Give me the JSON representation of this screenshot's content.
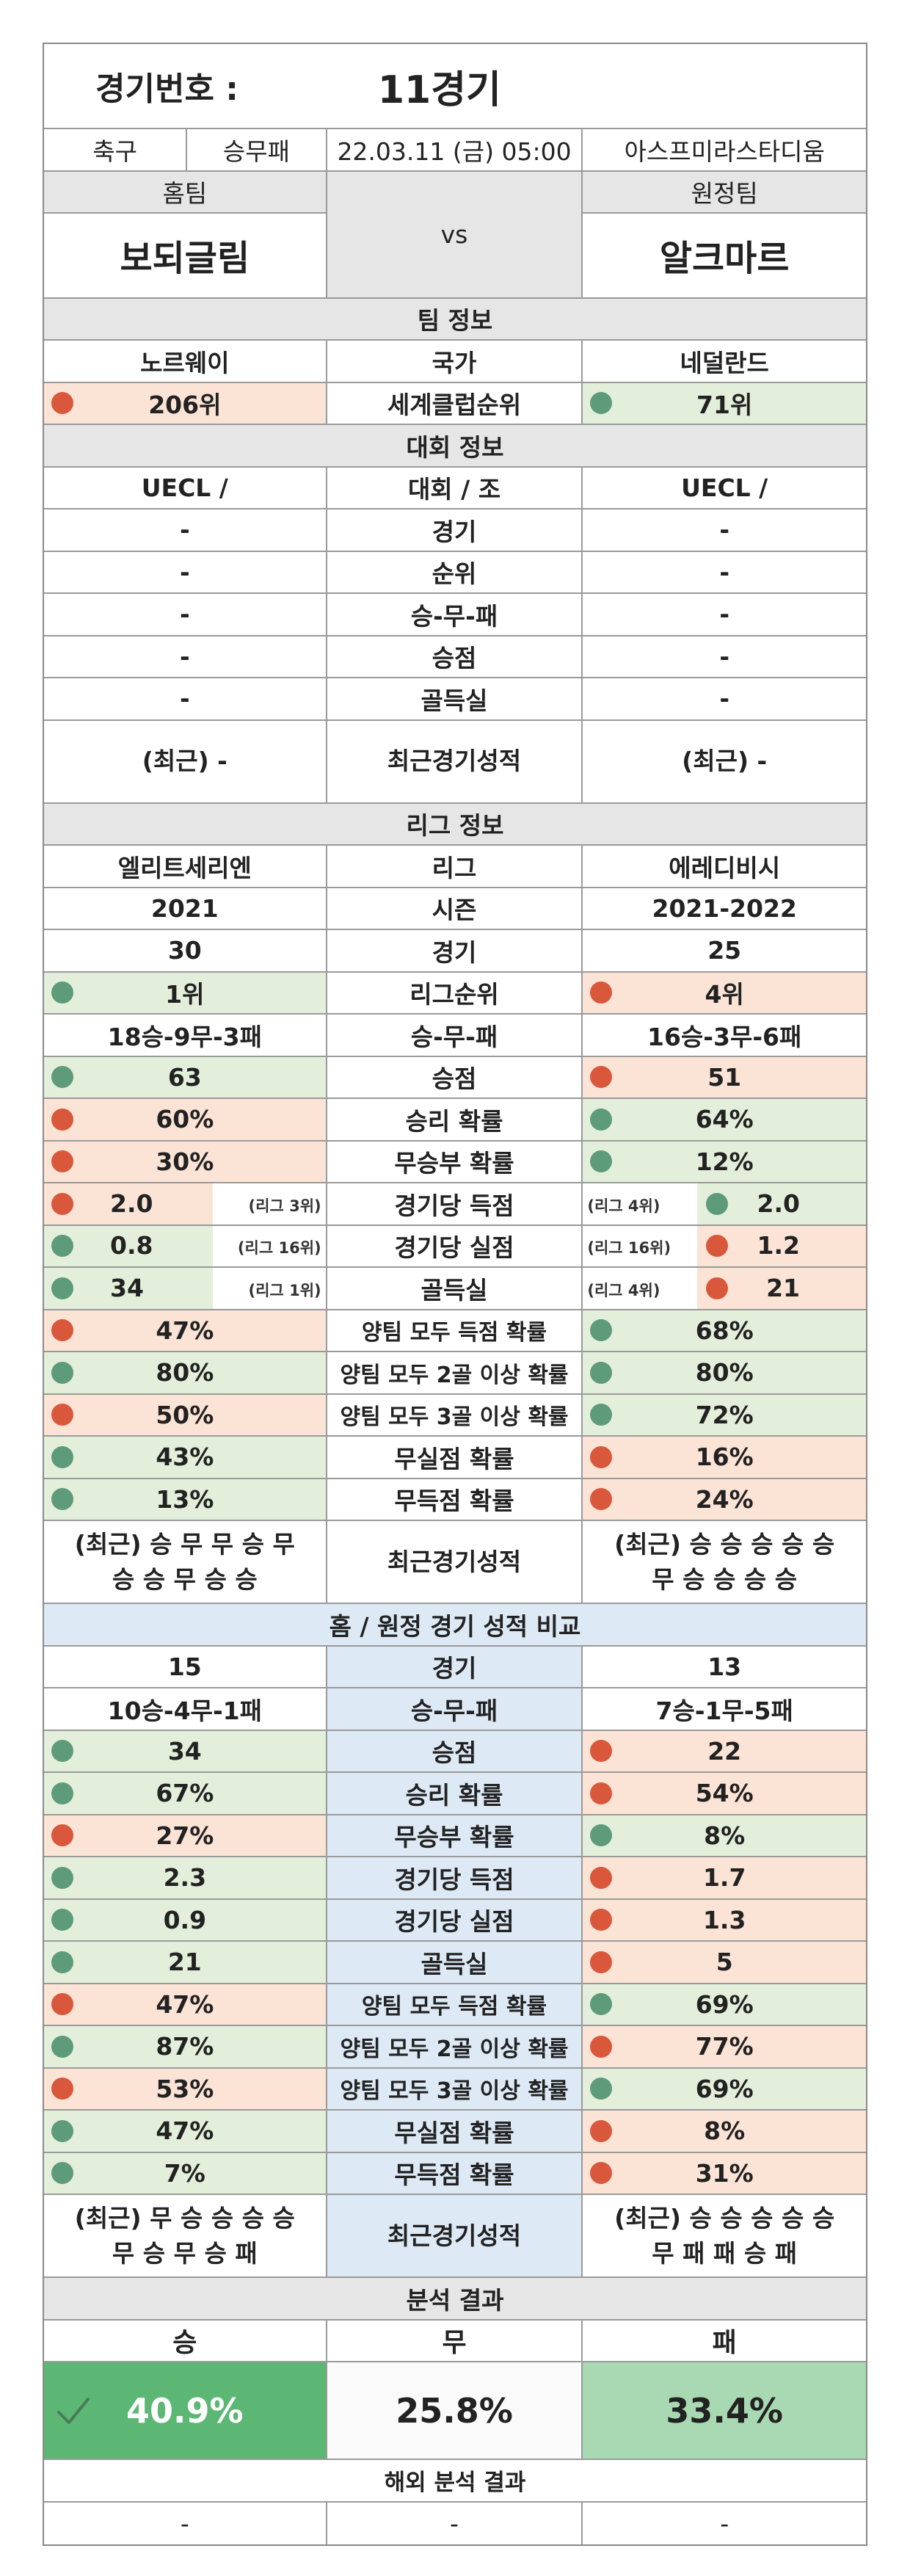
{
  "header": {
    "match_label": "경기번호 :",
    "match_no": "11경기",
    "sport": "축구",
    "bet_type": "승무패",
    "datetime": "22.03.11 (금) 05:00",
    "stadium": "아스프미라스타디움",
    "home_label": "홈팀",
    "away_label": "원정팀",
    "vs": "vs",
    "home_team": "보되글림",
    "away_team": "알크마르"
  },
  "team_info": {
    "section": "팀 정보",
    "rows": [
      {
        "label": "국가",
        "home": "노르웨이",
        "away": "네덜란드"
      },
      {
        "label": "세계클럽순위",
        "home": "206위",
        "away": "71위",
        "home_color": "red",
        "away_color": "green"
      }
    ]
  },
  "tournament_info": {
    "section": "대회 정보",
    "rows": [
      {
        "label": "대회 / 조",
        "home": "UECL /",
        "away": "UECL /"
      },
      {
        "label": "경기",
        "home": "-",
        "away": "-"
      },
      {
        "label": "순위",
        "home": "-",
        "away": "-"
      },
      {
        "label": "승-무-패",
        "home": "-",
        "away": "-"
      },
      {
        "label": "승점",
        "home": "-",
        "away": "-"
      },
      {
        "label": "골득실",
        "home": "-",
        "away": "-"
      }
    ],
    "recent": {
      "label": "최근경기성적",
      "home": "(최근) -",
      "away": "(최근) -"
    }
  },
  "league_info": {
    "section": "리그 정보",
    "rows": [
      {
        "label": "리그",
        "home": "엘리트세리엔",
        "away": "에레디비시"
      },
      {
        "label": "시즌",
        "home": "2021",
        "away": "2021-2022"
      },
      {
        "label": "경기",
        "home": "30",
        "away": "25"
      },
      {
        "label": "리그순위",
        "home": "1위",
        "away": "4위",
        "home_color": "green",
        "away_color": "red"
      },
      {
        "label": "승-무-패",
        "home": "18승-9무-3패",
        "away": "16승-3무-6패"
      },
      {
        "label": "승점",
        "home": "63",
        "away": "51",
        "home_color": "green",
        "away_color": "red"
      },
      {
        "label": "승리 확률",
        "home": "60%",
        "away": "64%",
        "home_color": "red",
        "away_color": "green"
      },
      {
        "label": "무승부 확률",
        "home": "30%",
        "away": "12%",
        "home_color": "red",
        "away_color": "green"
      },
      {
        "label": "경기당 득점",
        "home": "2.0",
        "away": "2.0",
        "home_color": "red",
        "away_color": "green",
        "home_rank": "(리그 3위)",
        "away_rank": "(리그 4위)"
      },
      {
        "label": "경기당 실점",
        "home": "0.8",
        "away": "1.2",
        "home_color": "green",
        "away_color": "red",
        "home_rank": "(리그 16위)",
        "away_rank": "(리그 16위)"
      },
      {
        "label": "골득실",
        "home": "34",
        "away": "21",
        "home_color": "green",
        "away_color": "red",
        "home_rank": "(리그 1위)",
        "away_rank": "(리그 4위)"
      },
      {
        "label": "양팀 모두 득점 확률",
        "home": "47%",
        "away": "68%",
        "home_color": "red",
        "away_color": "green"
      },
      {
        "label": "양팀 모두 2골 이상 확률",
        "home": "80%",
        "away": "80%",
        "home_color": "green",
        "away_color": "green"
      },
      {
        "label": "양팀 모두 3골 이상 확률",
        "home": "50%",
        "away": "72%",
        "home_color": "red",
        "away_color": "green"
      },
      {
        "label": "무실점 확률",
        "home": "43%",
        "away": "16%",
        "home_color": "green",
        "away_color": "red"
      },
      {
        "label": "무득점 확률",
        "home": "13%",
        "away": "24%",
        "home_color": "green",
        "away_color": "red"
      }
    ],
    "recent": {
      "label": "최근경기성적",
      "home_line1": "(최근) 승 무 무 승 무",
      "home_line2": "승 승 무 승 승",
      "away_line1": "(최근) 승 승 승 승 승",
      "away_line2": "무 승 승 승 승"
    }
  },
  "home_away": {
    "section": "홈 / 원정 경기 성적 비교",
    "rows": [
      {
        "label": "경기",
        "home": "15",
        "away": "13"
      },
      {
        "label": "승-무-패",
        "home": "10승-4무-1패",
        "away": "7승-1무-5패"
      },
      {
        "label": "승점",
        "home": "34",
        "away": "22",
        "home_color": "green",
        "away_color": "red"
      },
      {
        "label": "승리 확률",
        "home": "67%",
        "away": "54%",
        "home_color": "green",
        "away_color": "red"
      },
      {
        "label": "무승부 확률",
        "home": "27%",
        "away": "8%",
        "home_color": "red",
        "away_color": "green"
      },
      {
        "label": "경기당 득점",
        "home": "2.3",
        "away": "1.7",
        "home_color": "green",
        "away_color": "red"
      },
      {
        "label": "경기당 실점",
        "home": "0.9",
        "away": "1.3",
        "home_color": "green",
        "away_color": "red"
      },
      {
        "label": "골득실",
        "home": "21",
        "away": "5",
        "home_color": "green",
        "away_color": "red"
      },
      {
        "label": "양팀 모두 득점 확률",
        "home": "47%",
        "away": "69%",
        "home_color": "red",
        "away_color": "green"
      },
      {
        "label": "양팀 모두 2골 이상 확률",
        "home": "87%",
        "away": "77%",
        "home_color": "green",
        "away_color": "red"
      },
      {
        "label": "양팀 모두 3골 이상 확률",
        "home": "53%",
        "away": "69%",
        "home_color": "red",
        "away_color": "green"
      },
      {
        "label": "무실점 확률",
        "home": "47%",
        "away": "8%",
        "home_color": "green",
        "away_color": "red"
      },
      {
        "label": "무득점 확률",
        "home": "7%",
        "away": "31%",
        "home_color": "green",
        "away_color": "red"
      }
    ],
    "recent": {
      "label": "최근경기성적",
      "home_line1": "(최근) 무 승 승 승 승",
      "home_line2": "무 승 무 승 패",
      "away_line1": "(최근) 승 승 승 승 승",
      "away_line2": "무 패 패 승 패"
    }
  },
  "analysis": {
    "section": "분석 결과",
    "win_label": "승",
    "draw_label": "무",
    "loss_label": "패",
    "win": "40.9%",
    "draw": "25.8%",
    "loss": "33.4%",
    "overseas_label": "해외 분석 결과",
    "overseas_win": "-",
    "overseas_draw": "-",
    "overseas_loss": "-"
  },
  "colors": {
    "green_dot": "#5e9b7a",
    "red_dot": "#d9573a",
    "green_bg": "#e3efda",
    "red_bg": "#fbe3d6",
    "win_bg": "#5cb774",
    "loss_bg": "#a8d9b2"
  }
}
